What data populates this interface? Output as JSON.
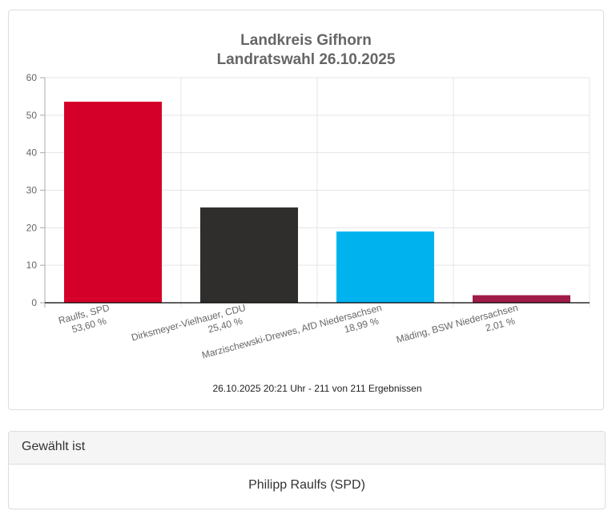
{
  "chart_data": {
    "type": "bar",
    "title": [
      "Landkreis Gifhorn",
      "Landratswahl 26.10.2025"
    ],
    "categories": [
      "Raulfs, SPD",
      "Dirksmeyer-Vielhauer, CDU",
      "Marzischewski-Drewes, AfD Niedersachsen",
      "Mäding, BSW Niedersachsen"
    ],
    "value_labels": [
      "53,60 %",
      "25,40 %",
      "18,99 %",
      "2,01 %"
    ],
    "values": [
      53.6,
      25.4,
      18.99,
      2.01
    ],
    "colors": [
      "#d50029",
      "#302e2d",
      "#00b3ee",
      "#a01c48"
    ],
    "ylim": [
      0,
      60
    ],
    "yticks": [
      0,
      10,
      20,
      30,
      40,
      50,
      60
    ],
    "grid": true,
    "footer": "26.10.2025 20:21 Uhr - 211 von 211 Ergebnissen"
  },
  "result_panel": {
    "heading": "Gewählt ist",
    "winner": "Philipp Raulfs (SPD)"
  }
}
